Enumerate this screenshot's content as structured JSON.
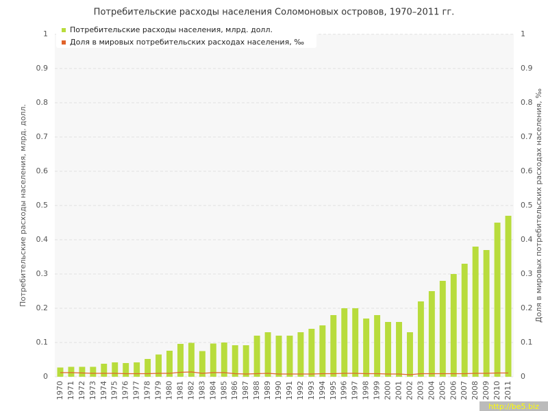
{
  "chart_data": {
    "type": "bar_line",
    "title": "Потребительские расходы населения Соломоновых островов, 1970–2011 гг.",
    "y_label": "Потребительские расходы населения, млрд. долл.",
    "y2_label": "Доля в мировых потребительских расходах населения, ‰",
    "watermark": "http://be5.biz",
    "categories": [
      "1970",
      "1971",
      "1972",
      "1973",
      "1974",
      "1975",
      "1976",
      "1977",
      "1978",
      "1979",
      "1980",
      "1981",
      "1982",
      "1983",
      "1984",
      "1985",
      "1986",
      "1987",
      "1988",
      "1989",
      "1990",
      "1991",
      "1992",
      "1993",
      "1994",
      "1995",
      "1996",
      "1997",
      "1998",
      "1999",
      "2000",
      "2001",
      "2002",
      "2003",
      "2004",
      "2005",
      "2006",
      "2007",
      "2008",
      "2009",
      "2010",
      "2011"
    ],
    "series": [
      {
        "name": "Потребительские расходы населения, млрд. долл.",
        "type": "bar",
        "color": "#b8dc3c",
        "values": [
          0.027,
          0.029,
          0.029,
          0.029,
          0.038,
          0.042,
          0.04,
          0.042,
          0.052,
          0.065,
          0.076,
          0.096,
          0.099,
          0.075,
          0.097,
          0.1,
          0.092,
          0.092,
          0.12,
          0.13,
          0.12,
          0.12,
          0.13,
          0.14,
          0.15,
          0.18,
          0.2,
          0.2,
          0.17,
          0.18,
          0.16,
          0.16,
          0.13,
          0.22,
          0.25,
          0.28,
          0.3,
          0.33,
          0.38,
          0.37,
          0.45,
          0.47
        ]
      },
      {
        "name": "Доля в мировых потребительских расходах населения, ‰",
        "type": "line",
        "axis": "y2",
        "color": "#e0622a",
        "values": [
          0.012,
          0.012,
          0.011,
          0.01,
          0.01,
          0.01,
          0.009,
          0.009,
          0.009,
          0.01,
          0.01,
          0.013,
          0.014,
          0.01,
          0.012,
          0.012,
          0.009,
          0.008,
          0.009,
          0.01,
          0.008,
          0.008,
          0.008,
          0.008,
          0.009,
          0.009,
          0.01,
          0.01,
          0.009,
          0.009,
          0.008,
          0.008,
          0.006,
          0.009,
          0.009,
          0.009,
          0.009,
          0.009,
          0.01,
          0.01,
          0.011,
          0.011
        ]
      }
    ],
    "ylim": [
      0,
      1
    ],
    "yticks": [
      0,
      0.1,
      0.2,
      0.3,
      0.4,
      0.5,
      0.6,
      0.7,
      0.8,
      0.9,
      1
    ],
    "y2lim": [
      0,
      1
    ],
    "y2ticks": [
      0,
      0.1,
      0.2,
      0.3,
      0.4,
      0.5,
      0.6,
      0.7,
      0.8,
      0.9,
      1
    ],
    "grid": true,
    "legend": "top-left"
  }
}
